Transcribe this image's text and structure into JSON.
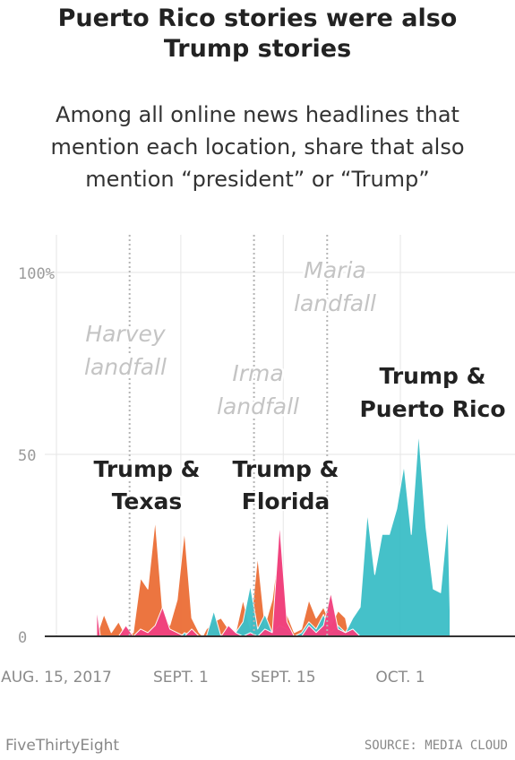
{
  "chart_data": {
    "type": "area",
    "title": "Puerto Rico stories were also Trump stories",
    "subtitle": "Among all online news headlines that mention each location, share that also mention “president” or “Trump”",
    "start_date": "2017-08-15",
    "x_ticks": [
      {
        "label": "AUG. 15, 2017",
        "x": 0
      },
      {
        "label": "SEPT. 1",
        "x": 17
      },
      {
        "label": "SEPT. 15",
        "x": 31
      },
      {
        "label": "OCT. 1",
        "x": 47
      }
    ],
    "y_ticks": [
      {
        "label": "0",
        "value": 0
      },
      {
        "label": "50",
        "value": 50
      },
      {
        "label": "100%",
        "value": 100
      }
    ],
    "ylim": [
      0,
      110
    ],
    "grid": true,
    "series": [
      {
        "name": "Trump & Texas",
        "color": "#ec713a",
        "x": [
          5.5,
          6.5,
          7.5,
          8.5,
          9,
          9.5,
          10.5,
          11.5,
          12.5,
          13.5,
          14.5,
          15.5,
          16.5,
          17.5,
          18.5,
          19.5,
          20
        ],
        "values": [
          0,
          6,
          1,
          4,
          2,
          0,
          1,
          16,
          13,
          32,
          7,
          3,
          10,
          29,
          5,
          1,
          0
        ]
      },
      {
        "name": "Trump & Florida",
        "color": "#ec713a",
        "x": [
          20,
          20.5,
          21.5,
          22.5,
          23.5,
          24.5,
          25.5,
          26.5,
          27.5,
          28.5,
          29.5,
          30.5,
          31.5,
          32.5,
          33.5,
          34.5,
          35.5,
          36.5,
          37.5,
          38.5,
          39.5,
          40
        ],
        "values": [
          0,
          2,
          4,
          5,
          2,
          1,
          10,
          2,
          22,
          3,
          10,
          26,
          6,
          1,
          2,
          10,
          5,
          8,
          3,
          7,
          5,
          0
        ]
      },
      {
        "name": "Trump & Puerto Rico",
        "color": "#3fbfc8",
        "x": [
          17,
          17.5,
          18.5,
          20.5,
          21.5,
          22.5,
          23.5,
          24.5,
          25.5,
          26.5,
          27.5,
          28.5,
          29.5,
          30.5,
          31.5,
          32.5,
          33.5,
          34.5,
          35.5,
          36.5,
          37.5,
          38.5,
          39.5,
          40.5,
          41.5,
          42.5,
          43.5,
          44.5,
          45.5,
          46.5,
          47.5,
          48.5,
          49.5,
          50.5,
          51.5,
          52.5,
          53.5,
          53.8
        ],
        "values": [
          0,
          1,
          0,
          0,
          7,
          0,
          2,
          1,
          4,
          14,
          2,
          6,
          1,
          3,
          2,
          0,
          1,
          4,
          2,
          6,
          1,
          3,
          1,
          5,
          8,
          34,
          17,
          28,
          28,
          35,
          47,
          28,
          56,
          30,
          13,
          12,
          33,
          7
        ]
      },
      {
        "name": "Trump",
        "color": "#f1427f",
        "x": [
          5.5,
          6,
          8.5,
          9.5,
          10.5,
          11.5,
          12.5,
          13.5,
          14.5,
          15.5,
          16.5,
          17.5,
          18.5,
          19.5,
          21.5,
          22.5,
          23.5,
          24.5,
          25.5,
          26.5,
          27.5,
          28.5,
          29.5,
          30.5,
          31.5,
          32.5,
          33.5,
          34.5,
          35.5,
          36.5,
          37.5,
          38.5,
          39.5,
          40.5,
          41.5
        ],
        "values": [
          8,
          0,
          0,
          3,
          0,
          2,
          1,
          3,
          8,
          2,
          1,
          0,
          2,
          0,
          0,
          0,
          3,
          1,
          0,
          1,
          0,
          2,
          1,
          31,
          4,
          0,
          0,
          3,
          1,
          3,
          12,
          2,
          1,
          2,
          0
        ]
      }
    ],
    "annotations": [
      {
        "line_x": 10,
        "label_lines": [
          "Harvey",
          "landfall"
        ]
      },
      {
        "line_x": 27,
        "label_lines": [
          "Irma",
          "landfall"
        ]
      },
      {
        "line_x": 37,
        "label_lines": [
          "Maria",
          "landfall"
        ]
      }
    ],
    "series_labels": [
      {
        "lines": [
          "Trump &",
          "Texas"
        ]
      },
      {
        "lines": [
          "Trump &",
          "Florida"
        ]
      },
      {
        "lines": [
          "Trump &",
          "Puerto Rico"
        ]
      }
    ]
  },
  "footer": {
    "brand": "FiveThirtyEight",
    "source": "SOURCE: MEDIA CLOUD"
  }
}
